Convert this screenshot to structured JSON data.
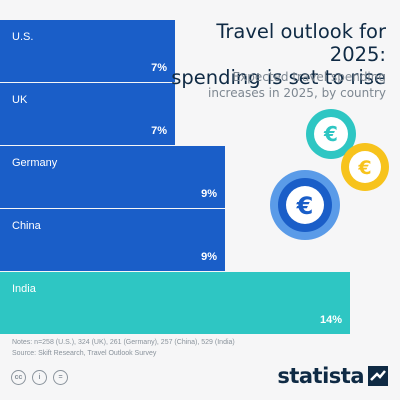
{
  "header": {
    "title_line1": "Travel outlook for 2025:",
    "title_line2": "spending is set to rise",
    "subtitle_line1": "Expected travel spending",
    "subtitle_line2": "increases in 2025, by country"
  },
  "chart_data": {
    "type": "bar",
    "orientation": "horizontal",
    "categories": [
      "U.S.",
      "UK",
      "Germany",
      "China",
      "India"
    ],
    "values": [
      7,
      7,
      9,
      9,
      14
    ],
    "value_labels": [
      "7%",
      "7%",
      "9%",
      "9%",
      "14%"
    ],
    "unit": "%",
    "xlim": [
      0,
      14
    ],
    "grid": false,
    "colors": {
      "default_bar": "#1a5ec8",
      "highlight_bar": "#2ec6c3",
      "label": "#ffffff"
    },
    "highlight": "India"
  },
  "decor": {
    "coins": [
      "euro-coin-icon",
      "euro-coin-icon",
      "euro-coin-icon"
    ],
    "coin_symbol": "€",
    "coin_colors": {
      "teal": "#2ec6c3",
      "yellow": "#f7c31c",
      "blue": "#1a5ec8",
      "blue_ring": "#5a9be8"
    }
  },
  "footer": {
    "notes": "Notes: n=258 (U.S.), 324 (UK), 261 (Germany), 257 (China), 529 (India)",
    "source": "Source: Skift Research, Travel Outlook Survey",
    "license_icons": [
      "cc-icon",
      "by-icon",
      "nd-icon"
    ],
    "license_glyphs": [
      "cc",
      "i",
      "="
    ],
    "brand": "statista"
  }
}
